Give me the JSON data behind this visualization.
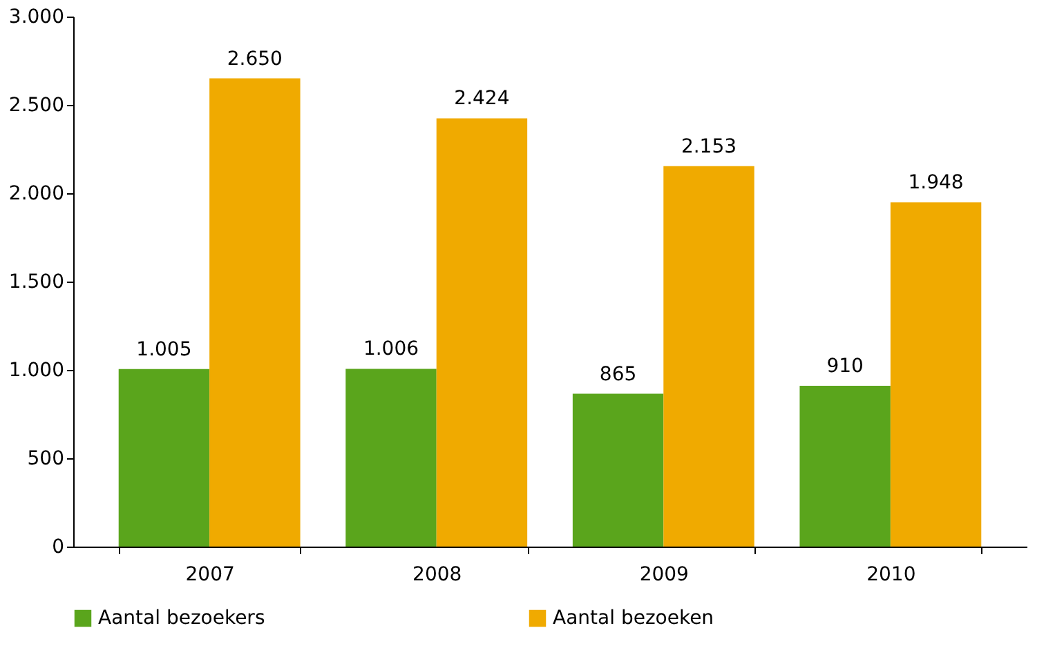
{
  "chart_data": {
    "type": "bar",
    "categories": [
      "2007",
      "2008",
      "2009",
      "2010"
    ],
    "series": [
      {
        "name": "Aantal bezoekers",
        "color": "#5aa51c",
        "values": [
          1005,
          1006,
          865,
          910
        ],
        "value_labels": [
          "1.005",
          "1.006",
          "865",
          "910"
        ]
      },
      {
        "name": "Aantal bezoeken",
        "color": "#f0aa00",
        "values": [
          2650,
          2424,
          2153,
          1948
        ],
        "value_labels": [
          "2.650",
          "2.424",
          "2.153",
          "1.948"
        ]
      }
    ],
    "ylim": [
      0,
      3000
    ],
    "yticks": [
      0,
      500,
      {
        "value": 1000,
        "label": "1.000"
      },
      {
        "value": 1500,
        "label": "1.500"
      },
      {
        "value": 2000,
        "label": "2.000"
      },
      {
        "value": 2500,
        "label": "2.500"
      },
      {
        "value": 3000,
        "label": "3.000"
      }
    ],
    "grid": false,
    "legend": "bottom"
  }
}
